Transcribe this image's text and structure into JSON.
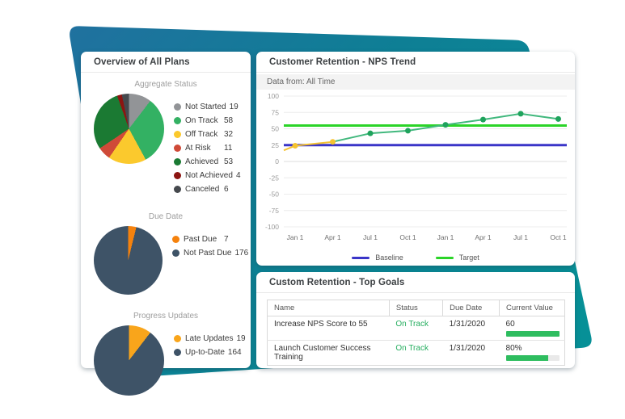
{
  "background": {
    "gradient_start": "#20719f",
    "gradient_mid": "#0e7f95",
    "gradient_end": "#079097"
  },
  "left_panel": {
    "title": "Overview of All Plans"
  },
  "nps_panel": {
    "title": "Customer Retention - NPS Trend",
    "filter_label": "Data from: All Time"
  },
  "goals_panel": {
    "title": "Custom Retention - Top Goals",
    "columns": [
      "Name",
      "Status",
      "Due Date",
      "Current Value"
    ],
    "rows": [
      {
        "name": "Increase NPS Score to 55",
        "status": "On Track",
        "status_color": "#27ae60",
        "due_date": "1/31/2020",
        "current_value": "60",
        "progress_pct": 100
      },
      {
        "name": "Launch Customer Success Training",
        "status": "On Track",
        "status_color": "#27ae60",
        "due_date": "1/31/2020",
        "current_value": "80%",
        "progress_pct": 80
      }
    ],
    "progress_bar_color": "#2ebd5f",
    "progress_track_color": "#e9e9e9"
  },
  "chart_data": [
    {
      "type": "pie",
      "title": "Aggregate Status",
      "labels": [
        "Not Started",
        "On Track",
        "Off Track",
        "At Risk",
        "Achieved",
        "Not Achieved",
        "Canceled"
      ],
      "values": [
        19,
        58,
        32,
        11,
        53,
        4,
        6
      ],
      "colors": [
        "#929497",
        "#33b163",
        "#fbc92d",
        "#cf4a38",
        "#1b7a33",
        "#8c1511",
        "#45494e"
      ],
      "legend_position": "right"
    },
    {
      "type": "pie",
      "title": "Due Date",
      "labels": [
        "Past Due",
        "Not Past Due"
      ],
      "values": [
        7,
        176
      ],
      "colors": [
        "#f5820d",
        "#3e5367"
      ],
      "legend_position": "right"
    },
    {
      "type": "pie",
      "title": "Progress Updates",
      "labels": [
        "Late Updates",
        "Up-to-Date"
      ],
      "values": [
        19,
        164
      ],
      "colors": [
        "#f9a51b",
        "#3e5367"
      ],
      "legend_position": "right"
    },
    {
      "type": "line",
      "title": "Customer Retention - NPS Trend",
      "x_tick_labels": [
        "Jan 1",
        "Apr 1",
        "Jul 1",
        "Oct 1",
        "Jan 1",
        "Apr 1",
        "Jul 1",
        "Oct 1"
      ],
      "ylim": [
        -100,
        100
      ],
      "y_tick_step": 25,
      "grid": true,
      "series": [
        {
          "name": "NPS",
          "edge_start_value": 17,
          "values": [
            24,
            30,
            43,
            47,
            56,
            64,
            73,
            65
          ],
          "below_color": "#f5c331",
          "above_color": "#41b87d",
          "dot_below_color": "#f5c331",
          "dot_above_color": "#1fa35c",
          "color_switch_index": 2
        }
      ],
      "ref_lines": [
        {
          "name": "Baseline",
          "value": 25,
          "color": "#3a35c8"
        },
        {
          "name": "Target",
          "value": 55,
          "color": "#2bd428"
        }
      ],
      "legend_position": "bottom"
    }
  ]
}
